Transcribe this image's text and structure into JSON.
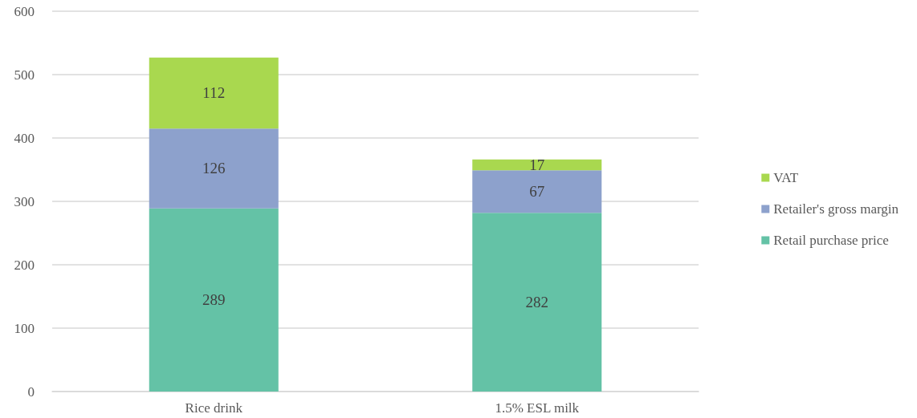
{
  "chart_data": {
    "type": "bar",
    "stacked": true,
    "categories": [
      "Rice drink",
      "1.5% ESL milk"
    ],
    "series": [
      {
        "name": "Retail purchase price",
        "color": "#64c2a6",
        "values": [
          289,
          282
        ]
      },
      {
        "name": "Retailer's gross margin",
        "color": "#8da1cc",
        "values": [
          126,
          67
        ]
      },
      {
        "name": "VAT",
        "color": "#a9d84f",
        "values": [
          112,
          17
        ]
      }
    ],
    "ylim": [
      0,
      600
    ],
    "yticks": [
      0,
      100,
      200,
      300,
      400,
      500,
      600
    ],
    "grid": "y",
    "legend": "right",
    "data_labels": true
  }
}
